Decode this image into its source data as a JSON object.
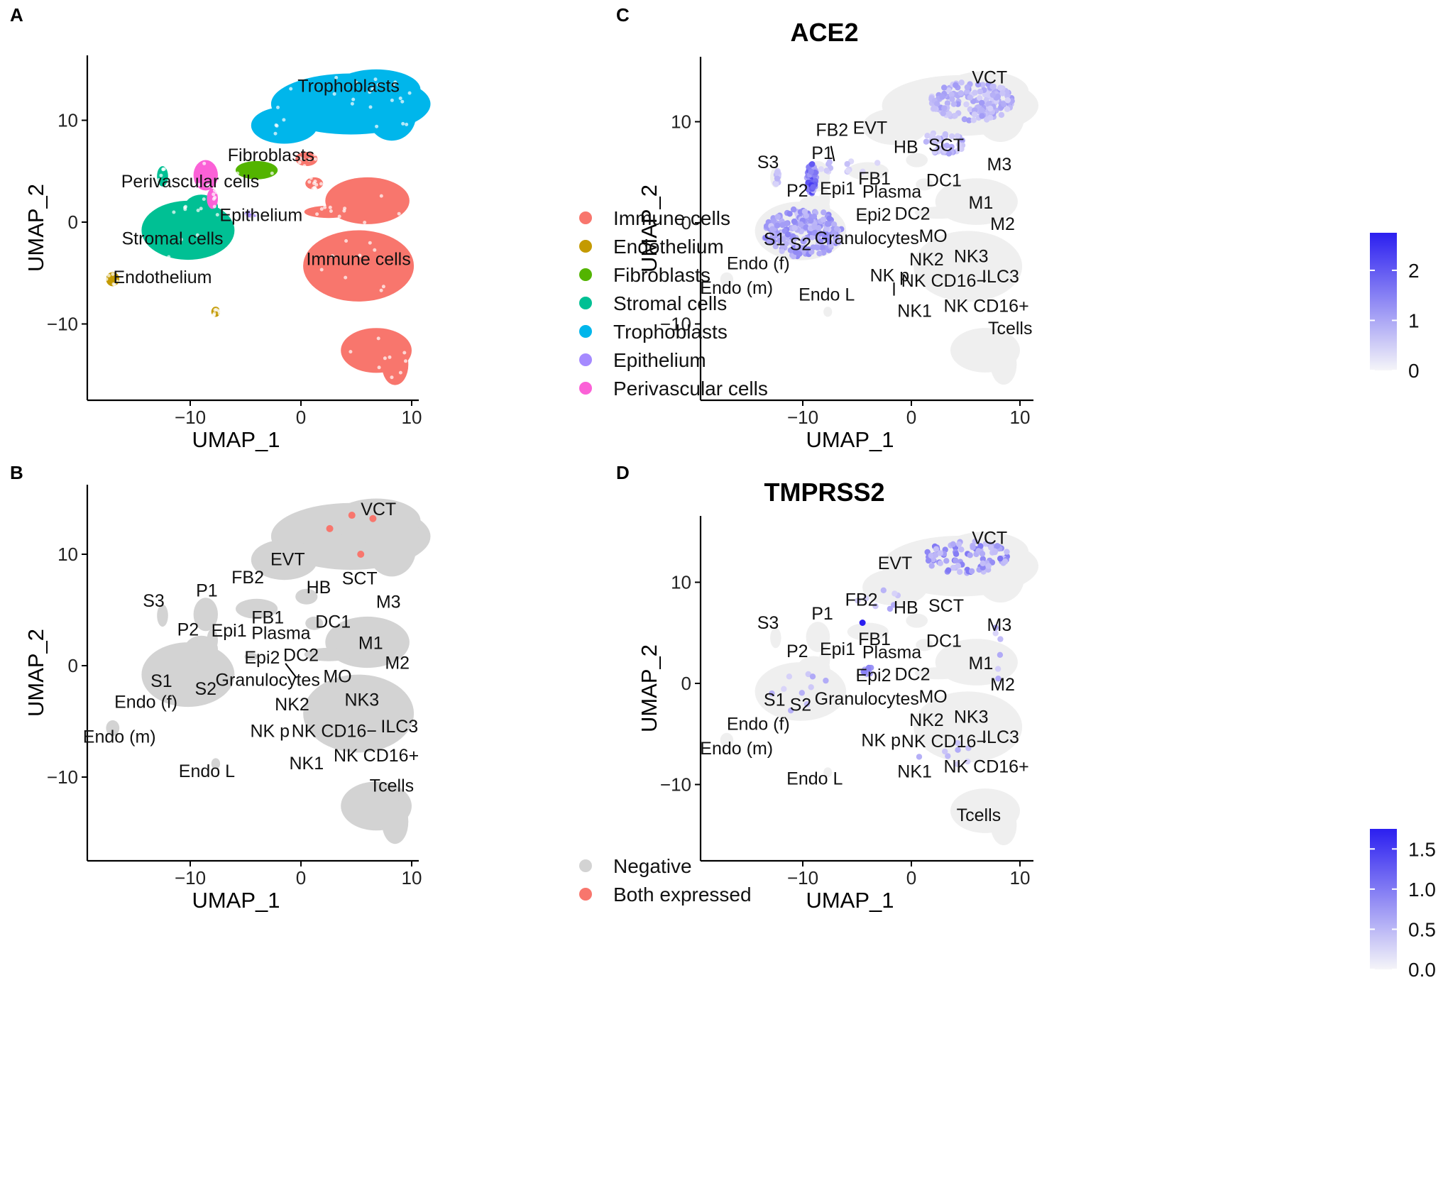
{
  "figure": {
    "panels": [
      {
        "letter": "A",
        "kind": "clusters",
        "xlabel": "UMAP_1",
        "ylabel": "UMAP_2",
        "xlim": [
          -19,
          11
        ],
        "ylim": [
          -17,
          16.5
        ],
        "xticks": [
          -10,
          0,
          10
        ],
        "yticks": [
          -10,
          0,
          10
        ],
        "x_tick_labels": [
          "−10",
          "0",
          "10"
        ],
        "y_tick_labels": [
          "−10",
          "0",
          "10"
        ],
        "legend": [
          {
            "label": "Immune cells",
            "color": "#F8766D"
          },
          {
            "label": "Endothelium",
            "color": "#C49A00"
          },
          {
            "label": "Fibroblasts",
            "color": "#53B400"
          },
          {
            "label": "Stromal cells",
            "color": "#00C094"
          },
          {
            "label": "Trophoblasts",
            "color": "#00B6EB"
          },
          {
            "label": "Epithelium",
            "color": "#A58AFF"
          },
          {
            "label": "Perivascular cells",
            "color": "#FB61D7"
          }
        ],
        "labels": [
          {
            "text": "Trophoblasts",
            "x": 4.3,
            "y": 12.8
          },
          {
            "text": "Fibroblasts",
            "x": -2.7,
            "y": 6.0
          },
          {
            "text": "Perivascular cells",
            "x": -10.0,
            "y": 3.4
          },
          {
            "text": "Epithelium",
            "x": -3.6,
            "y": 0.1
          },
          {
            "text": "Stromal cells",
            "x": -11.6,
            "y": -2.2
          },
          {
            "text": "Immune cells",
            "x": 5.2,
            "y": -4.2
          },
          {
            "text": "Endothelium",
            "x": -12.5,
            "y": -6.0
          }
        ]
      },
      {
        "letter": "B",
        "kind": "binary",
        "xlabel": "UMAP_1",
        "ylabel": "UMAP_2",
        "xlim": [
          -19,
          11
        ],
        "ylim": [
          -18.5,
          16
        ],
        "xticks": [
          -10,
          0,
          10
        ],
        "yticks": [
          -10,
          0,
          10
        ],
        "x_tick_labels": [
          "−10",
          "0",
          "10"
        ],
        "y_tick_labels": [
          "−10",
          "0",
          "10"
        ],
        "legend": [
          {
            "label": "Negative",
            "color": "#D3D3D3"
          },
          {
            "label": "Both expressed",
            "color": "#F8766D"
          }
        ],
        "highlight_points": [
          [
            2.6,
            12.3
          ],
          [
            4.6,
            13.5
          ],
          [
            6.5,
            13.2
          ],
          [
            5.4,
            10.0
          ]
        ]
      },
      {
        "letter": "C",
        "kind": "feature",
        "title": "ACE2",
        "xlabel": "UMAP_1",
        "ylabel": "UMAP_2",
        "xlim": [
          -19,
          11
        ],
        "ylim": [
          -17,
          16.5
        ],
        "xticks": [
          -10,
          0,
          10
        ],
        "yticks": [
          -10,
          0,
          10
        ],
        "x_tick_labels": [
          "−10",
          "0",
          "10"
        ],
        "y_tick_labels": [
          "−10",
          "0",
          "10"
        ],
        "colorbar": {
          "min": 0,
          "max": 2.75,
          "low_color": "#F5F5F8",
          "high_color": "#2B1FF0",
          "ticks": [
            0,
            1,
            2
          ],
          "tick_labels": [
            "0",
            "1",
            "2"
          ]
        }
      },
      {
        "letter": "D",
        "kind": "feature",
        "title": "TMPRSS2",
        "xlabel": "UMAP_1",
        "ylabel": "UMAP_2",
        "xlim": [
          -19,
          11
        ],
        "ylim": [
          -17,
          16.5
        ],
        "xticks": [
          -10,
          0,
          10
        ],
        "yticks": [
          -10,
          0,
          10
        ],
        "x_tick_labels": [
          "−10",
          "0",
          "10"
        ],
        "y_tick_labels": [
          "−10",
          "0",
          "10"
        ],
        "colorbar": {
          "min": 0,
          "max": 1.75,
          "low_color": "#F5F5F8",
          "high_color": "#2B1FF0",
          "ticks": [
            0,
            0.5,
            1,
            1.5
          ],
          "tick_labels": [
            "0.0",
            "0.5",
            "1.0",
            "1.5"
          ]
        }
      }
    ]
  },
  "chart_data": [
    {
      "type": "scatter",
      "panel": "A",
      "subtype": "UMAP embedding colored by cell type",
      "xlabel": "UMAP_1",
      "ylabel": "UMAP_2",
      "xlim": [
        -19,
        11
      ],
      "ylim": [
        -17,
        16.5
      ],
      "series": [
        {
          "name": "Immune cells",
          "centroids": [
            [
              5.2,
              -4.0
            ],
            [
              6.5,
              -12.5
            ],
            [
              6.5,
              2.0
            ]
          ]
        },
        {
          "name": "Endothelium",
          "centroids": [
            [
              -17.0,
              -5.7
            ],
            [
              -7.7,
              -8.8
            ]
          ]
        },
        {
          "name": "Fibroblasts",
          "centroids": [
            [
              -4.0,
              5.1
            ]
          ]
        },
        {
          "name": "Stromal cells",
          "centroids": [
            [
              -10.2,
              -0.7
            ],
            [
              -12.3,
              4.8
            ]
          ]
        },
        {
          "name": "Trophoblasts",
          "centroids": [
            [
              4.0,
              11.5
            ]
          ]
        },
        {
          "name": "Epithelium",
          "centroids": [
            [
              -4.5,
              0.8
            ]
          ]
        },
        {
          "name": "Perivascular cells",
          "centroids": [
            [
              -8.5,
              4.5
            ]
          ]
        }
      ]
    },
    {
      "type": "scatter",
      "panel": "B",
      "subtype": "UMAP embedding, ACE2/TMPRSS2 co-expression",
      "xlabel": "UMAP_1",
      "ylabel": "UMAP_2",
      "series": [
        {
          "name": "Negative",
          "description": "all cells"
        },
        {
          "name": "Both expressed",
          "points": [
            [
              2.6,
              12.3
            ],
            [
              4.6,
              13.5
            ],
            [
              6.5,
              13.2
            ],
            [
              5.4,
              10.0
            ]
          ]
        }
      ],
      "cluster_labels": [
        {
          "text": "VCT",
          "x": 7.0,
          "y": 13.5
        },
        {
          "text": "EVT",
          "x": -1.2,
          "y": 9.0
        },
        {
          "text": "FB2",
          "x": -4.8,
          "y": 7.4
        },
        {
          "text": "HB",
          "x": 1.6,
          "y": 6.5
        },
        {
          "text": "SCT",
          "x": 5.3,
          "y": 7.3
        },
        {
          "text": "S3",
          "x": -13.3,
          "y": 5.3
        },
        {
          "text": "P1",
          "x": -8.5,
          "y": 6.2
        },
        {
          "text": "M3",
          "x": 7.9,
          "y": 5.2
        },
        {
          "text": "FB1",
          "x": -3.0,
          "y": 3.8
        },
        {
          "text": "DC1",
          "x": 2.9,
          "y": 3.4
        },
        {
          "text": "P2",
          "x": -10.2,
          "y": 2.7
        },
        {
          "text": "Epi1",
          "x": -6.5,
          "y": 2.6
        },
        {
          "text": "Plasma",
          "x": -1.8,
          "y": 2.4
        },
        {
          "text": "M1",
          "x": 6.3,
          "y": 1.5
        },
        {
          "text": "Epi2",
          "x": -3.5,
          "y": 0.2
        },
        {
          "text": "DC2",
          "x": 0.0,
          "y": 0.4
        },
        {
          "text": "M2",
          "x": 8.7,
          "y": -0.3
        },
        {
          "text": "S1",
          "x": -12.6,
          "y": -1.9
        },
        {
          "text": "S2",
          "x": -8.6,
          "y": -2.6
        },
        {
          "text": "Granulocytes",
          "x": -3.0,
          "y": -1.8
        },
        {
          "text": "MO",
          "x": 3.3,
          "y": -1.5
        },
        {
          "text": "Endo (f)",
          "x": -14.0,
          "y": -3.8
        },
        {
          "text": "NK2",
          "x": -0.8,
          "y": -4.0
        },
        {
          "text": "NK3",
          "x": 5.5,
          "y": -3.6
        },
        {
          "text": "Endo (m)",
          "x": -16.4,
          "y": -6.9
        },
        {
          "text": "NK p",
          "x": -2.8,
          "y": -6.4
        },
        {
          "text": "NK CD16−",
          "x": 3.0,
          "y": -6.4
        },
        {
          "text": "ILC3",
          "x": 8.9,
          "y": -6.0
        },
        {
          "text": "NK1",
          "x": 0.5,
          "y": -9.3
        },
        {
          "text": "NK CD16+",
          "x": 6.8,
          "y": -8.6
        },
        {
          "text": "Endo L",
          "x": -8.5,
          "y": -10.0
        },
        {
          "text": "Tcells",
          "x": 8.2,
          "y": -11.3
        }
      ]
    },
    {
      "type": "scatter",
      "panel": "C",
      "title": "ACE2",
      "subtype": "feature plot; expression in cells mostly of P1 (max ~2.75), stromal S1/S2 and VCT/SCT",
      "xlabel": "UMAP_1",
      "ylabel": "UMAP_2",
      "color_range": [
        0,
        2.75
      ],
      "cluster_labels": [
        {
          "text": "VCT",
          "x": 7.2,
          "y": 13.8
        },
        {
          "text": "FB2",
          "x": -7.3,
          "y": 8.6
        },
        {
          "text": "EVT",
          "x": -3.8,
          "y": 8.8
        },
        {
          "text": "P1",
          "x": -8.2,
          "y": 6.3
        },
        {
          "text": "HB",
          "x": -0.5,
          "y": 6.9
        },
        {
          "text": "SCT",
          "x": 3.2,
          "y": 7.1
        },
        {
          "text": "S3",
          "x": -13.2,
          "y": 5.4
        },
        {
          "text": "M3",
          "x": 8.1,
          "y": 5.2
        },
        {
          "text": "FB1",
          "x": -3.4,
          "y": 3.8
        },
        {
          "text": "DC1",
          "x": 3.0,
          "y": 3.6
        },
        {
          "text": "P2",
          "x": -10.5,
          "y": 2.6
        },
        {
          "text": "Epi1",
          "x": -6.8,
          "y": 2.8
        },
        {
          "text": "Plasma",
          "x": -1.8,
          "y": 2.5
        },
        {
          "text": "M1",
          "x": 6.4,
          "y": 1.4
        },
        {
          "text": "Epi2",
          "x": -3.5,
          "y": 0.2
        },
        {
          "text": "DC2",
          "x": 0.1,
          "y": 0.3
        },
        {
          "text": "M2",
          "x": 8.4,
          "y": -0.7
        },
        {
          "text": "S1",
          "x": -12.6,
          "y": -2.2
        },
        {
          "text": "S2",
          "x": -10.2,
          "y": -2.7
        },
        {
          "text": "Granulocytes",
          "x": -4.1,
          "y": -2.1
        },
        {
          "text": "MO",
          "x": 2.0,
          "y": -1.9
        },
        {
          "text": "Endo (f)",
          "x": -14.1,
          "y": -4.6
        },
        {
          "text": "NK2",
          "x": 1.4,
          "y": -4.2
        },
        {
          "text": "NK3",
          "x": 5.5,
          "y": -3.9
        },
        {
          "text": "Endo (m)",
          "x": -16.1,
          "y": -7.0
        },
        {
          "text": "NK p",
          "x": -2.0,
          "y": -5.8
        },
        {
          "text": "NK CD16−",
          "x": 3.0,
          "y": -6.3
        },
        {
          "text": "ILC3",
          "x": 8.2,
          "y": -5.9
        },
        {
          "text": "Endo L",
          "x": -7.8,
          "y": -7.7
        },
        {
          "text": "NK1",
          "x": 0.3,
          "y": -9.3
        },
        {
          "text": "NK CD16+",
          "x": 6.9,
          "y": -8.8
        },
        {
          "text": "Tcells",
          "x": 9.1,
          "y": -11.0
        }
      ]
    },
    {
      "type": "scatter",
      "panel": "D",
      "title": "TMPRSS2",
      "subtype": "feature plot; expression mostly in VCT/SCT, sparse elsewhere, max ~1.75 at FB2",
      "xlabel": "UMAP_1",
      "ylabel": "UMAP_2",
      "color_range": [
        0,
        1.75
      ],
      "cluster_labels": [
        {
          "text": "VCT",
          "x": 7.2,
          "y": 13.8
        },
        {
          "text": "EVT",
          "x": -1.5,
          "y": 11.3
        },
        {
          "text": "FB2",
          "x": -4.6,
          "y": 7.7
        },
        {
          "text": "HB",
          "x": -0.5,
          "y": 6.9
        },
        {
          "text": "SCT",
          "x": 3.2,
          "y": 7.1
        },
        {
          "text": "S3",
          "x": -13.2,
          "y": 5.4
        },
        {
          "text": "P1",
          "x": -8.2,
          "y": 6.3
        },
        {
          "text": "M3",
          "x": 8.1,
          "y": 5.2
        },
        {
          "text": "FB1",
          "x": -3.4,
          "y": 3.8
        },
        {
          "text": "DC1",
          "x": 3.0,
          "y": 3.6
        },
        {
          "text": "P2",
          "x": -10.5,
          "y": 2.6
        },
        {
          "text": "Epi1",
          "x": -6.8,
          "y": 2.8
        },
        {
          "text": "Plasma",
          "x": -1.8,
          "y": 2.5
        },
        {
          "text": "M1",
          "x": 6.4,
          "y": 1.4
        },
        {
          "text": "Epi2",
          "x": -3.5,
          "y": 0.2
        },
        {
          "text": "DC2",
          "x": 0.1,
          "y": 0.3
        },
        {
          "text": "M2",
          "x": 8.4,
          "y": -0.7
        },
        {
          "text": "S1",
          "x": -12.6,
          "y": -2.2
        },
        {
          "text": "S2",
          "x": -10.2,
          "y": -2.7
        },
        {
          "text": "Granulocytes",
          "x": -4.1,
          "y": -2.1
        },
        {
          "text": "MO",
          "x": 2.0,
          "y": -1.9
        },
        {
          "text": "Endo (f)",
          "x": -14.1,
          "y": -4.6
        },
        {
          "text": "NK2",
          "x": 1.4,
          "y": -4.2
        },
        {
          "text": "NK3",
          "x": 5.5,
          "y": -3.9
        },
        {
          "text": "Endo (m)",
          "x": -16.1,
          "y": -7.0
        },
        {
          "text": "NK p",
          "x": -2.8,
          "y": -6.2
        },
        {
          "text": "NK CD16−",
          "x": 3.0,
          "y": -6.3
        },
        {
          "text": "ILC3",
          "x": 8.2,
          "y": -5.9
        },
        {
          "text": "Endo L",
          "x": -8.9,
          "y": -10.0
        },
        {
          "text": "NK1",
          "x": 0.3,
          "y": -9.3
        },
        {
          "text": "NK CD16+",
          "x": 6.9,
          "y": -8.8
        },
        {
          "text": "Tcells",
          "x": 6.2,
          "y": -13.6
        }
      ]
    }
  ]
}
